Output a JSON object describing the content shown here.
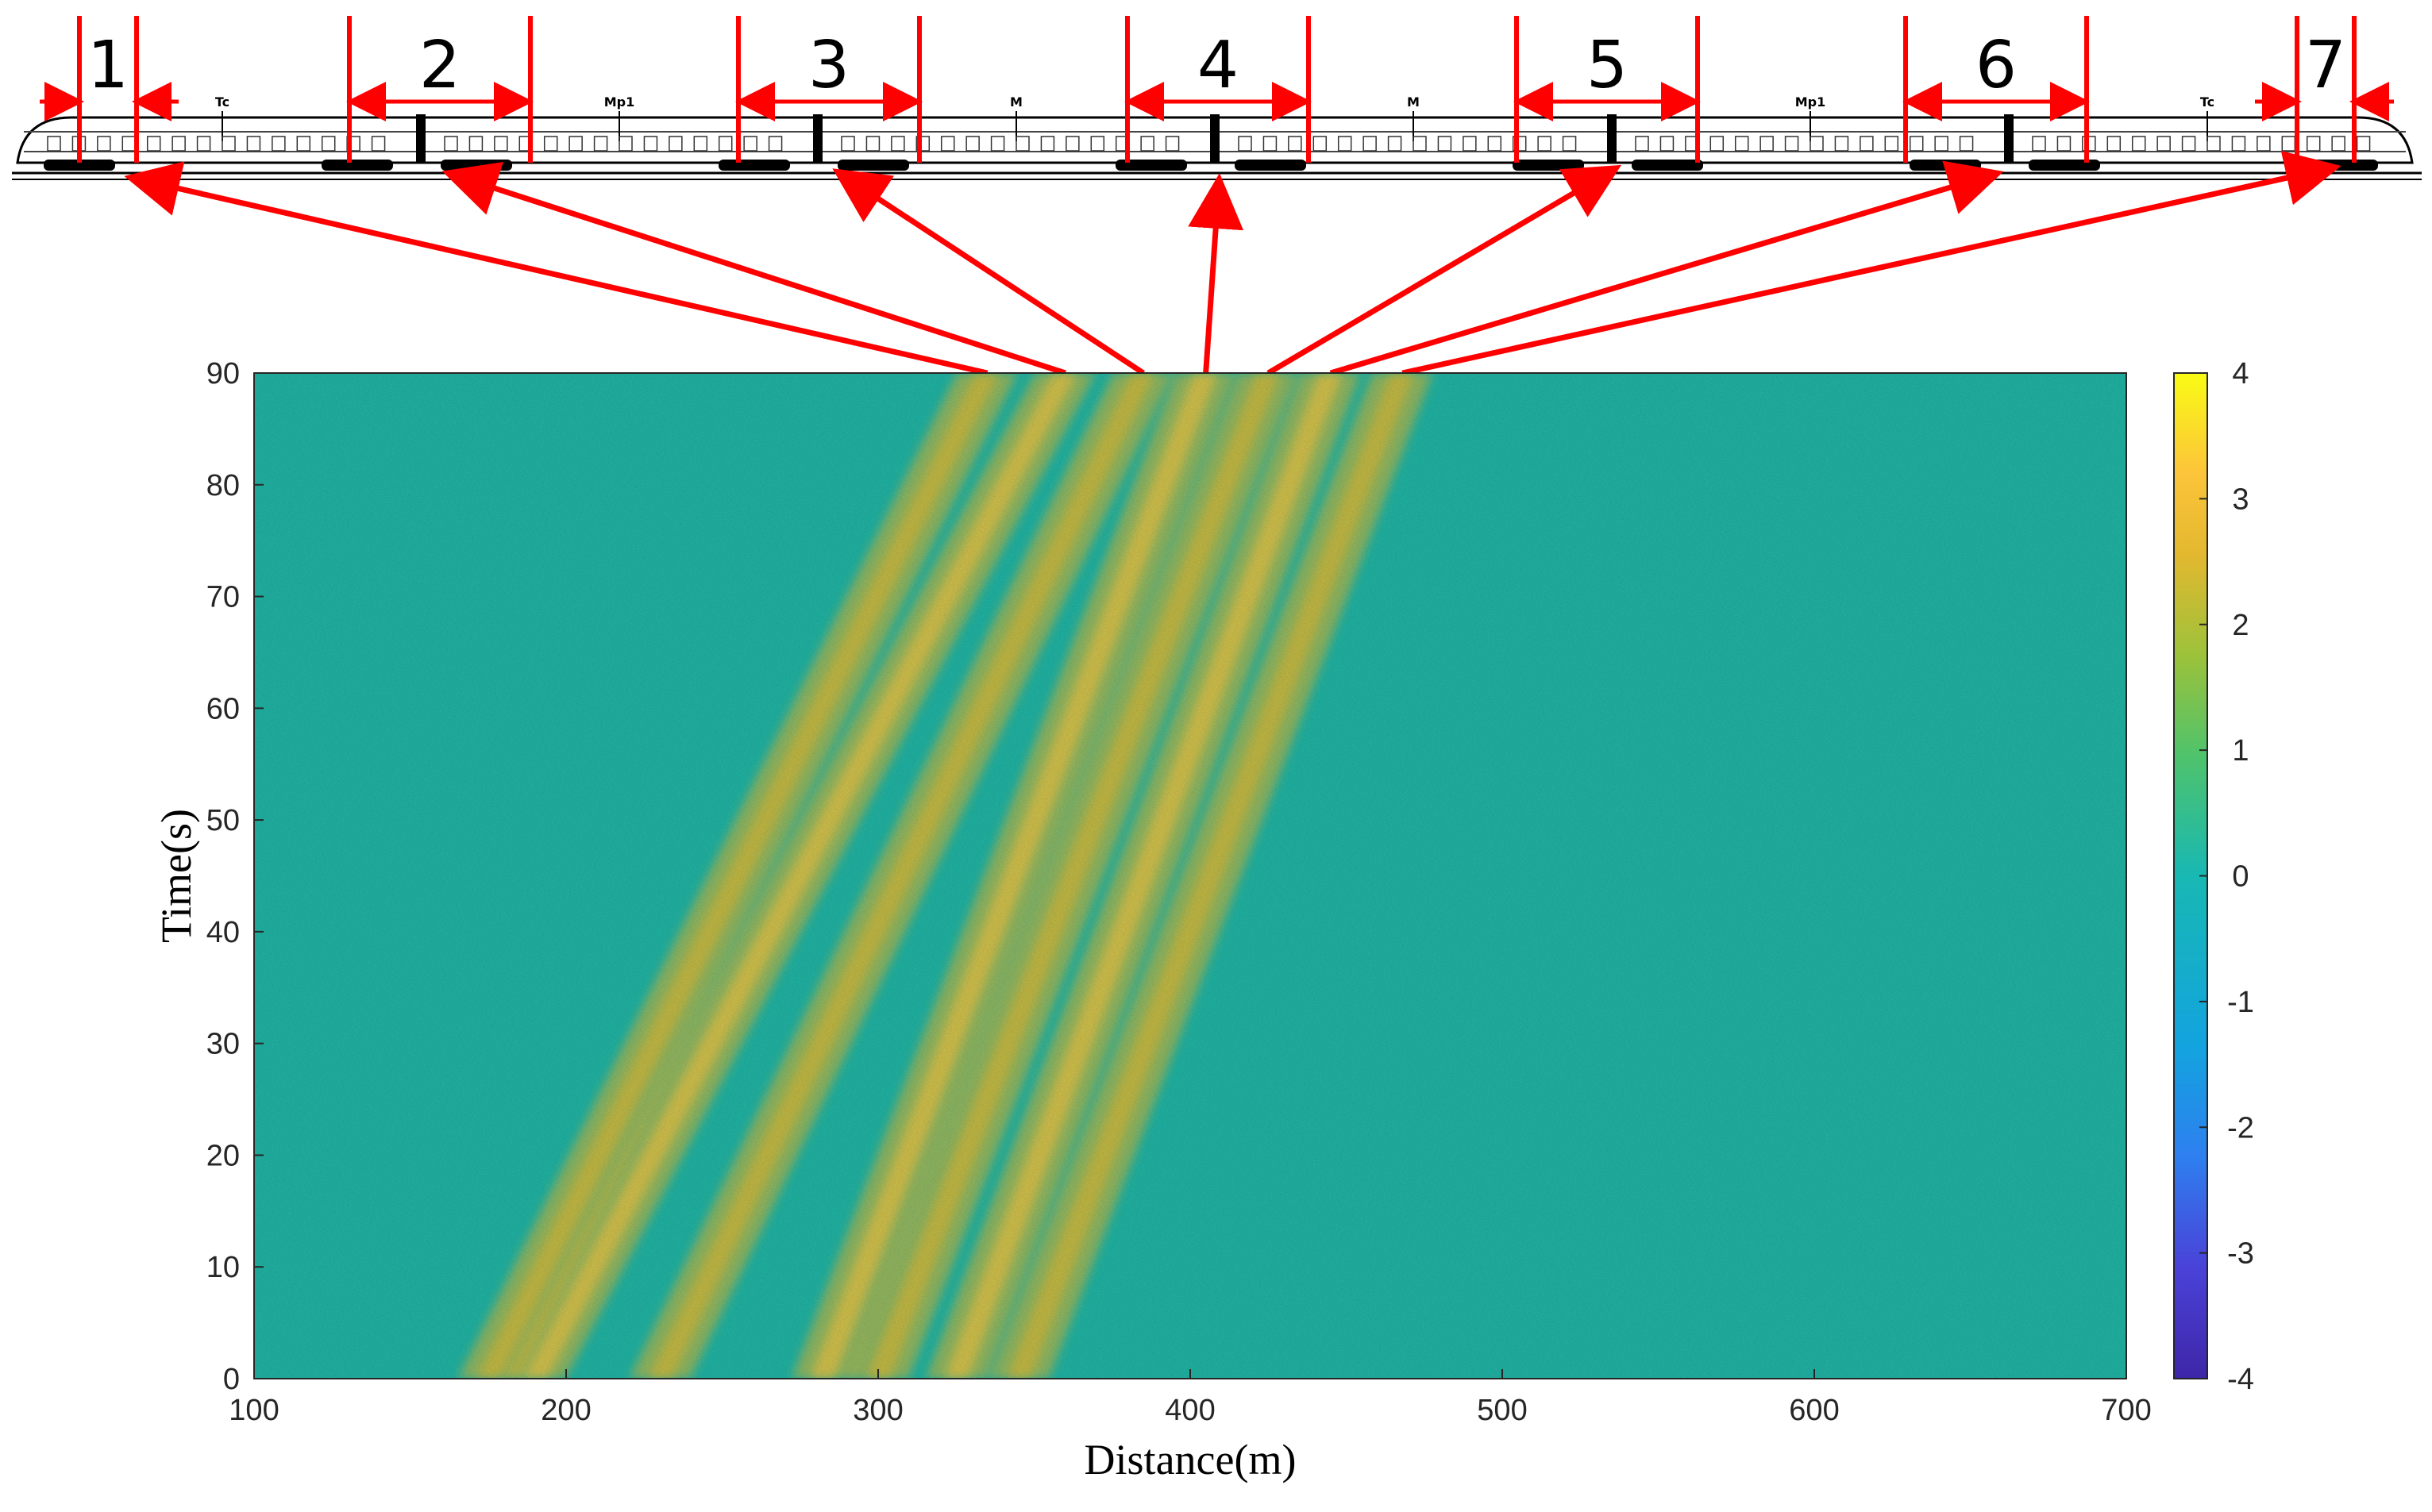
{
  "colors": {
    "background": "#20b2a2",
    "annotation": "#ff0000",
    "colormap": [
      "#3e26a8",
      "#4a42d8",
      "#2e7fef",
      "#13a3df",
      "#18b8b3",
      "#4fc36b",
      "#9dc23a",
      "#e3b82f",
      "#fcc43a",
      "#f9fb15"
    ]
  },
  "train": {
    "segment_labels": [
      "1",
      "2",
      "3",
      "4",
      "5",
      "6",
      "7"
    ],
    "car_labels": [
      "Tc",
      "Mp1",
      "M",
      "M",
      "Mp1",
      "Tc"
    ]
  },
  "chart_data": {
    "type": "heatmap",
    "title": "",
    "xlabel": "Distance(m)",
    "ylabel": "Time(s)",
    "xlim": [
      100,
      700
    ],
    "ylim": [
      0,
      90
    ],
    "clim": [
      -4,
      4
    ],
    "colormap": "parula",
    "x_ticks": [
      "100",
      "200",
      "300",
      "400",
      "500",
      "600",
      "700"
    ],
    "y_ticks": [
      "0",
      "10",
      "20",
      "30",
      "40",
      "50",
      "60",
      "70",
      "80",
      "90"
    ],
    "colorbar_ticks": [
      "-4",
      "-3",
      "-2",
      "-1",
      "0",
      "1",
      "2",
      "3",
      "4"
    ],
    "signal_bands": [
      {
        "name": "1",
        "x_at_t0": 175,
        "x_at_t90": 335
      },
      {
        "name": "2",
        "x_at_t0": 190,
        "x_at_t90": 360
      },
      {
        "name": "3",
        "x_at_t0": 230,
        "x_at_t90": 385
      },
      {
        "name": "4",
        "x_at_t0": 282,
        "x_at_t90": 405
      },
      {
        "name": "5",
        "x_at_t0": 300,
        "x_at_t90": 425
      },
      {
        "name": "6",
        "x_at_t0": 325,
        "x_at_t90": 445
      },
      {
        "name": "7",
        "x_at_t0": 345,
        "x_at_t90": 468
      }
    ],
    "band_amplitude": [
      2.0,
      3.5
    ],
    "background_amplitude": 0
  }
}
